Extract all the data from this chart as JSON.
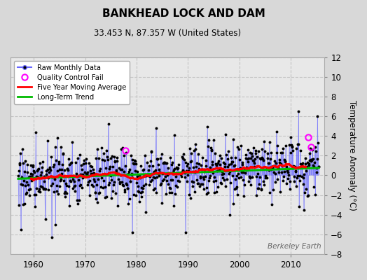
{
  "title": "BANKHEAD LOCK AND DAM",
  "subtitle": "33.453 N, 87.357 W (United States)",
  "ylabel": "Temperature Anomaly (°C)",
  "watermark": "Berkeley Earth",
  "start_year": 1957.0,
  "end_year": 2015.5,
  "xlim": [
    1955.5,
    2016.5
  ],
  "ylim": [
    -8,
    12
  ],
  "yticks": [
    -8,
    -6,
    -4,
    -2,
    0,
    2,
    4,
    6,
    8,
    10,
    12
  ],
  "xticks": [
    1960,
    1970,
    1980,
    1990,
    2000,
    2010
  ],
  "outer_bg": "#d8d8d8",
  "plot_bg": "#e8e8e8",
  "grid_color": "#c0c0c0",
  "raw_line_color": "#6666ff",
  "raw_line_alpha": 0.6,
  "raw_dot_color": "#000000",
  "ma_color": "#ff0000",
  "trend_color": "#00bb00",
  "qc_color": "#ff00ff",
  "legend_loc": "upper left",
  "seed": 17
}
